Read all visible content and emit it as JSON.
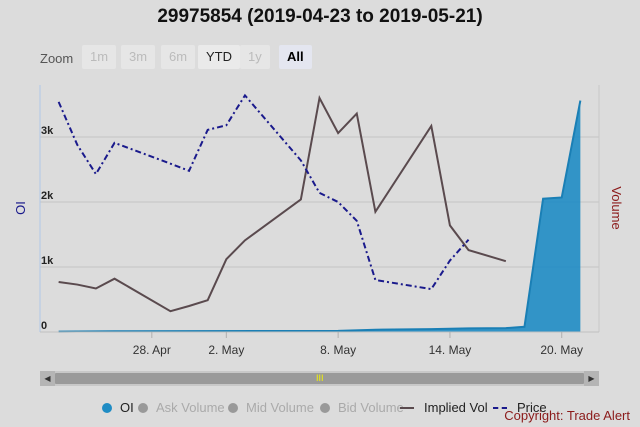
{
  "title": "29975854 (2019-04-23 to 2019-05-21)",
  "zoom": {
    "label": "Zoom",
    "buttons": [
      {
        "label": "1m",
        "state": "disabled"
      },
      {
        "label": "3m",
        "state": "disabled"
      },
      {
        "label": "6m",
        "state": "disabled"
      },
      {
        "label": "YTD",
        "state": "enabled"
      },
      {
        "label": "1y",
        "state": "disabled"
      },
      {
        "label": "All",
        "state": "active"
      }
    ]
  },
  "scrollbar": {
    "grip": "III",
    "left_arrow": "◀",
    "right_arrow": "▶"
  },
  "legend": [
    {
      "label": "OI",
      "color": "#1f8cc4",
      "marker": "dot",
      "active": true
    },
    {
      "label": "Ask Volume",
      "color": "#999999",
      "marker": "dot",
      "active": false
    },
    {
      "label": "Mid Volume",
      "color": "#999999",
      "marker": "dot",
      "active": false
    },
    {
      "label": "Bid Volume",
      "color": "#999999",
      "marker": "dot",
      "active": false
    },
    {
      "label": "Implied Vol",
      "color": "#5a4a4e",
      "marker": "line",
      "active": true
    },
    {
      "label": "Price",
      "color": "#1a1a8c",
      "marker": "dash",
      "active": true
    }
  ],
  "copyright": "Copyright: Trade Alert",
  "chart_data": {
    "type": "line",
    "x": [
      "2019-04-23",
      "2019-04-24",
      "2019-04-25",
      "2019-04-26",
      "2019-04-27",
      "2019-04-28",
      "2019-04-29",
      "2019-04-30",
      "2019-05-01",
      "2019-05-02",
      "2019-05-03",
      "2019-05-04",
      "2019-05-05",
      "2019-05-06",
      "2019-05-07",
      "2019-05-08",
      "2019-05-09",
      "2019-05-10",
      "2019-05-11",
      "2019-05-12",
      "2019-05-13",
      "2019-05-14",
      "2019-05-15",
      "2019-05-16",
      "2019-05-17",
      "2019-05-18",
      "2019-05-19",
      "2019-05-20",
      "2019-05-21"
    ],
    "x_tick_labels": [
      {
        "date": "2019-04-28",
        "label": "28. Apr"
      },
      {
        "date": "2019-05-02",
        "label": "2. May"
      },
      {
        "date": "2019-05-08",
        "label": "8. May"
      },
      {
        "date": "2019-05-14",
        "label": "14. May"
      },
      {
        "date": "2019-05-20",
        "label": "20. May"
      }
    ],
    "y_left": {
      "label": "OI",
      "range": [
        0,
        3800
      ],
      "ticks": [
        0,
        1000,
        2000,
        3000
      ],
      "tick_labels": [
        "0",
        "1k",
        "2k",
        "3k"
      ],
      "color": "#1a1a8c"
    },
    "y_right": {
      "label": "Volume",
      "color": "#8b1a1a"
    },
    "series": [
      {
        "name": "OI",
        "kind": "area",
        "color": "#1f8cc4",
        "points": [
          [
            "2019-04-23",
            5
          ],
          [
            "2019-04-26",
            12
          ],
          [
            "2019-05-08",
            18
          ],
          [
            "2019-05-10",
            35
          ],
          [
            "2019-05-13",
            45
          ],
          [
            "2019-05-15",
            55
          ],
          [
            "2019-05-17",
            60
          ],
          [
            "2019-05-18",
            80
          ],
          [
            "2019-05-19",
            2050
          ],
          [
            "2019-05-20",
            2070
          ],
          [
            "2019-05-21",
            3560
          ]
        ]
      },
      {
        "name": "Implied Vol",
        "kind": "line",
        "color": "#5a4a4e",
        "points": [
          [
            "2019-04-23",
            770
          ],
          [
            "2019-04-24",
            730
          ],
          [
            "2019-04-25",
            670
          ],
          [
            "2019-04-26",
            820
          ],
          [
            "2019-04-29",
            320
          ],
          [
            "2019-04-30",
            400
          ],
          [
            "2019-05-01",
            490
          ],
          [
            "2019-05-02",
            1120
          ],
          [
            "2019-05-03",
            1410
          ],
          [
            "2019-05-06",
            2040
          ],
          [
            "2019-05-07",
            3600
          ],
          [
            "2019-05-08",
            3060
          ],
          [
            "2019-05-09",
            3360
          ],
          [
            "2019-05-10",
            1850
          ],
          [
            "2019-05-13",
            3170
          ],
          [
            "2019-05-14",
            1640
          ],
          [
            "2019-05-15",
            1260
          ],
          [
            "2019-05-17",
            1090
          ]
        ]
      },
      {
        "name": "Price",
        "kind": "dashed",
        "color": "#1a1a8c",
        "points": [
          [
            "2019-04-23",
            3540
          ],
          [
            "2019-04-24",
            2880
          ],
          [
            "2019-04-25",
            2430
          ],
          [
            "2019-04-26",
            2910
          ],
          [
            "2019-04-29",
            2590
          ],
          [
            "2019-04-30",
            2480
          ],
          [
            "2019-05-01",
            3110
          ],
          [
            "2019-05-02",
            3180
          ],
          [
            "2019-05-03",
            3640
          ],
          [
            "2019-05-06",
            2640
          ],
          [
            "2019-05-07",
            2140
          ],
          [
            "2019-05-08",
            2000
          ],
          [
            "2019-05-09",
            1710
          ],
          [
            "2019-05-10",
            800
          ],
          [
            "2019-05-13",
            660
          ],
          [
            "2019-05-14",
            1100
          ],
          [
            "2019-05-15",
            1420
          ]
        ]
      }
    ]
  }
}
